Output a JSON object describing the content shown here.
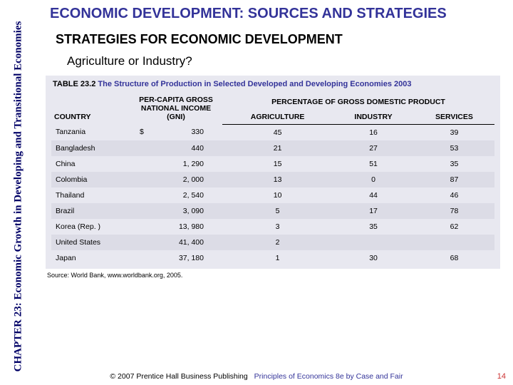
{
  "sidebar": {
    "chapter_label": "CHAPTER 23:  Economic Growth in Developing and Transitional Economies"
  },
  "headings": {
    "title": "ECONOMIC DEVELOPMENT:  SOURCES AND STRATEGIES",
    "subtitle": "STRATEGIES FOR ECONOMIC DEVELOPMENT",
    "section_question": "Agriculture or Industry?"
  },
  "table": {
    "caption_label": "TABLE 23.2",
    "caption_text": "The Structure of Production in Selected Developed and Developing Economies 2003",
    "columns": {
      "country": "COUNTRY",
      "income": "PER-CAPITA GROSS NATIONAL INCOME (GNI)",
      "group": "PERCENTAGE OF GROSS DOMESTIC PRODUCT",
      "agriculture": "AGRICULTURE",
      "industry": "INDUSTRY",
      "services": "SERVICES"
    },
    "currency_symbol": "$",
    "rows": [
      {
        "country": "Tanzania",
        "income": "330",
        "agriculture": "45",
        "industry": "16",
        "services": "39",
        "show_dollar": true
      },
      {
        "country": "Bangladesh",
        "income": "440",
        "agriculture": "21",
        "industry": "27",
        "services": "53"
      },
      {
        "country": "China",
        "income": "1, 290",
        "agriculture": "15",
        "industry": "51",
        "services": "35"
      },
      {
        "country": "Colombia",
        "income": "2, 000",
        "agriculture": "13",
        "industry": "0",
        "services": "87"
      },
      {
        "country": "Thailand",
        "income": "2, 540",
        "agriculture": "10",
        "industry": "44",
        "services": "46"
      },
      {
        "country": "Brazil",
        "income": "3, 090",
        "agriculture": "5",
        "industry": "17",
        "services": "78"
      },
      {
        "country": "Korea (Rep. )",
        "income": "13, 980",
        "agriculture": "3",
        "industry": "35",
        "services": "62"
      },
      {
        "country": "United States",
        "income": "41, 400",
        "agriculture": "2",
        "industry": "",
        "services": ""
      },
      {
        "country": "Japan",
        "income": "37, 180",
        "agriculture": "1",
        "industry": "30",
        "services": "68"
      }
    ],
    "source": "Source:  World Bank, www.worldbank.org, 2005."
  },
  "footer": {
    "copyright": "© 2007 Prentice Hall Business Publishing",
    "book": "Principles of Economics 8e by Case and Fair",
    "page_number": "14"
  },
  "colors": {
    "heading": "#333399",
    "sidebar_text": "#000066",
    "table_bg": "#e8e8f0",
    "row_alt": "#dcdce6",
    "pagenum": "#cc3333"
  }
}
